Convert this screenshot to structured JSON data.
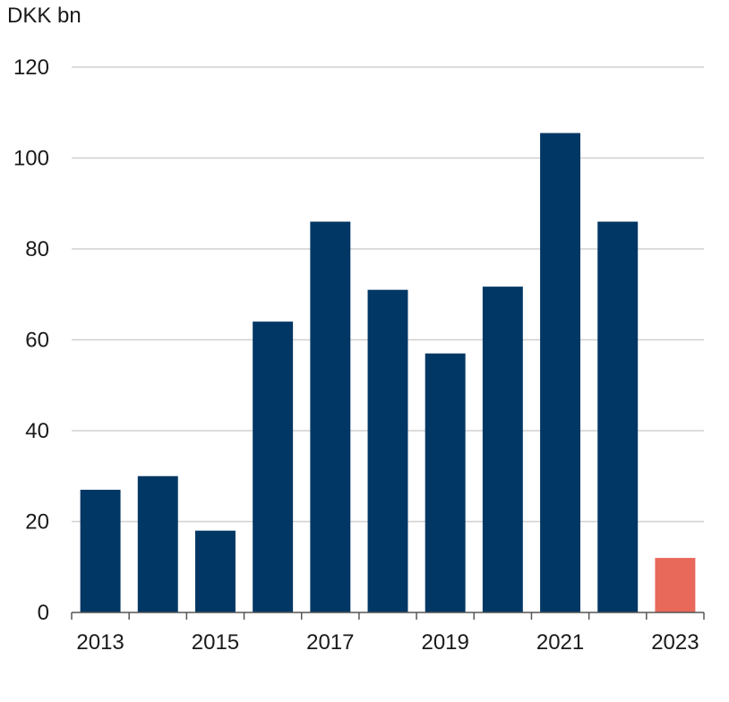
{
  "chart_data": {
    "type": "bar",
    "ylabel": "DKK bn",
    "categories": [
      "2013",
      "2014",
      "2015",
      "2016",
      "2017",
      "2018",
      "2019",
      "2020",
      "2021",
      "2022",
      "2023"
    ],
    "values": [
      27,
      30,
      18,
      64,
      86,
      71,
      57,
      71.7,
      105.5,
      86,
      12
    ],
    "x_tick_labels": [
      "2013",
      "2015",
      "2017",
      "2019",
      "2021",
      "2023"
    ],
    "y_ticks": [
      0,
      20,
      40,
      60,
      80,
      100,
      120
    ],
    "ylim": [
      0,
      120
    ],
    "grid": true,
    "colors": {
      "bar": "#003764",
      "highlight": "#E8685A",
      "grid": "#d0d0d0",
      "axis": "#555555"
    },
    "highlight_category": "2023"
  }
}
